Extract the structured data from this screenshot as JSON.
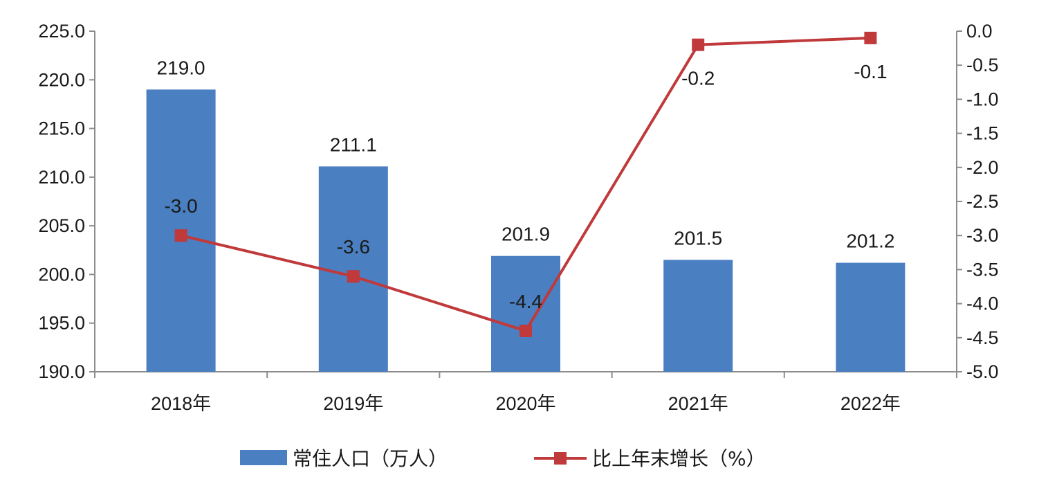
{
  "chart_data": {
    "type": "bar+line",
    "categories": [
      "2018年",
      "2019年",
      "2020年",
      "2021年",
      "2022年"
    ],
    "series": [
      {
        "name": "常住人口（万人）",
        "type": "bar",
        "axis": "left",
        "values": [
          219.0,
          211.1,
          201.9,
          201.5,
          201.2
        ],
        "labels": [
          "219.0",
          "211.1",
          "201.9",
          "201.5",
          "201.2"
        ],
        "color": "#4a7fc1"
      },
      {
        "name": "比上年末增长（%）",
        "type": "line",
        "axis": "right",
        "values": [
          -3.0,
          -3.6,
          -4.4,
          -0.2,
          -0.1
        ],
        "labels": [
          "-3.0",
          "-3.6",
          "-4.4",
          "-0.2",
          "-0.1"
        ],
        "color": "#c0393b"
      }
    ],
    "y_left": {
      "min": 190.0,
      "max": 225.0,
      "ticks": [
        "190.0",
        "195.0",
        "200.0",
        "205.0",
        "210.0",
        "215.0",
        "220.0",
        "225.0"
      ]
    },
    "y_right": {
      "min": -5.0,
      "max": 0.0,
      "ticks": [
        "-5.0",
        "-4.5",
        "-4.0",
        "-3.5",
        "-3.0",
        "-2.5",
        "-2.0",
        "-1.5",
        "-1.0",
        "-0.5",
        "0.0"
      ]
    },
    "grid": false,
    "legend_position": "bottom"
  }
}
